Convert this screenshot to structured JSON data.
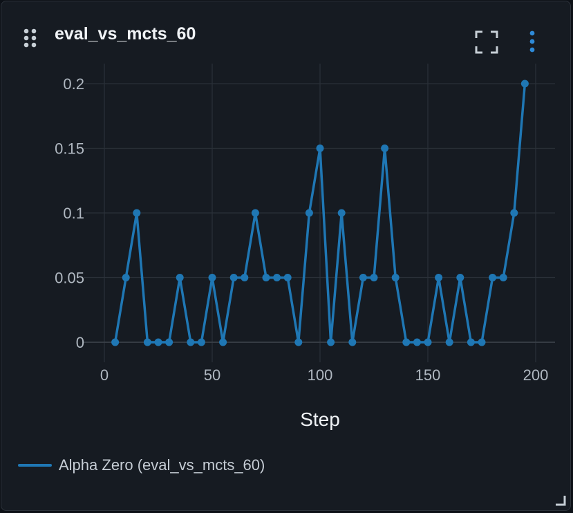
{
  "panel": {
    "title": "eval_vs_mcts_60"
  },
  "icons": {
    "drag": "drag-dots-icon",
    "fullscreen": "fullscreen-icon",
    "menu": "more-vertical-icon",
    "resize": "resize-corner-icon"
  },
  "colors": {
    "background": "#0d1117",
    "panel": "#161b22",
    "series": "#1f77b4",
    "grid": "#2b3139",
    "tick_text": "#b0b8c1",
    "axis_title": "#f0f3f6",
    "icon": "#c7cfd6",
    "menu_icon": "#2e8ad8"
  },
  "legend": {
    "label": "Alpha Zero (eval_vs_mcts_60)"
  },
  "chart_data": {
    "type": "line",
    "title": "eval_vs_mcts_60",
    "xlabel": "Step",
    "ylabel": "",
    "xlim": [
      0,
      209
    ],
    "ylim": [
      -0.015,
      0.21
    ],
    "x_ticks": [
      0,
      50,
      100,
      150,
      200
    ],
    "y_ticks": [
      0,
      0.05,
      0.1,
      0.15,
      0.2
    ],
    "x_tick_labels": [
      "0",
      "50",
      "100",
      "150",
      "200"
    ],
    "y_tick_labels": [
      "0",
      "0.05",
      "0.1",
      "0.15",
      "0.2"
    ],
    "grid": true,
    "legend_position": "bottom-left",
    "series": [
      {
        "name": "Alpha Zero (eval_vs_mcts_60)",
        "x": [
          5,
          10,
          15,
          20,
          25,
          30,
          35,
          40,
          45,
          50,
          55,
          60,
          65,
          70,
          75,
          80,
          85,
          90,
          95,
          100,
          105,
          110,
          115,
          120,
          125,
          130,
          135,
          140,
          145,
          150,
          155,
          160,
          165,
          170,
          175,
          180,
          185,
          190,
          195
        ],
        "y": [
          0,
          0.05,
          0.1,
          0,
          0,
          0,
          0.05,
          0,
          0,
          0.05,
          0,
          0.05,
          0.05,
          0.1,
          0.05,
          0.05,
          0.05,
          0,
          0.1,
          0.15,
          0,
          0.1,
          0,
          0.05,
          0.05,
          0.15,
          0.05,
          0,
          0,
          0,
          0.05,
          0,
          0.05,
          0,
          0,
          0.05,
          0.05,
          0.1,
          0.2
        ]
      }
    ]
  }
}
